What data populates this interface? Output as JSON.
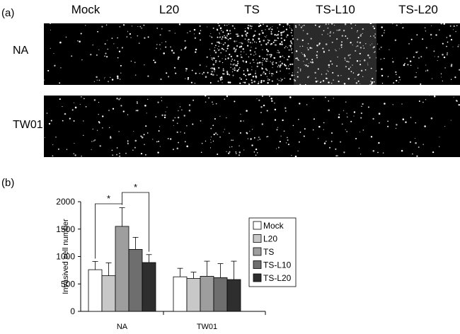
{
  "panel_a": {
    "label": "(a)",
    "columns": [
      "Mock",
      "L20",
      "TS",
      "TS-L10",
      "TS-L20"
    ],
    "rows": [
      "NA",
      "TW01"
    ]
  },
  "panel_b": {
    "label": "(b)"
  },
  "chart_data": {
    "type": "bar",
    "categories": [
      "NA",
      "TW01"
    ],
    "ylabel": "Invasived cell number",
    "ylim": [
      0,
      2000
    ],
    "yticks": [
      0,
      500,
      1000,
      1500,
      2000
    ],
    "legend_position": "right",
    "series": [
      {
        "name": "Mock",
        "values": [
          760,
          630
        ],
        "errors": [
          150,
          155
        ],
        "color": "#ffffff"
      },
      {
        "name": "L20",
        "values": [
          650,
          600
        ],
        "errors": [
          235,
          115
        ],
        "color": "#c8c8c8"
      },
      {
        "name": "TS",
        "values": [
          1550,
          640
        ],
        "errors": [
          340,
          275
        ],
        "color": "#9e9e9e"
      },
      {
        "name": "TS-L10",
        "values": [
          1130,
          615
        ],
        "errors": [
          220,
          255
        ],
        "color": "#6e6e6e"
      },
      {
        "name": "TS-L20",
        "values": [
          890,
          580
        ],
        "errors": [
          145,
          335
        ],
        "color": "#2e2e2e"
      }
    ],
    "significance": [
      {
        "from": "Mock",
        "to": "TS",
        "category": "NA",
        "label": "*"
      },
      {
        "from": "TS",
        "to": "TS-L20",
        "category": "NA",
        "label": "*"
      }
    ]
  }
}
